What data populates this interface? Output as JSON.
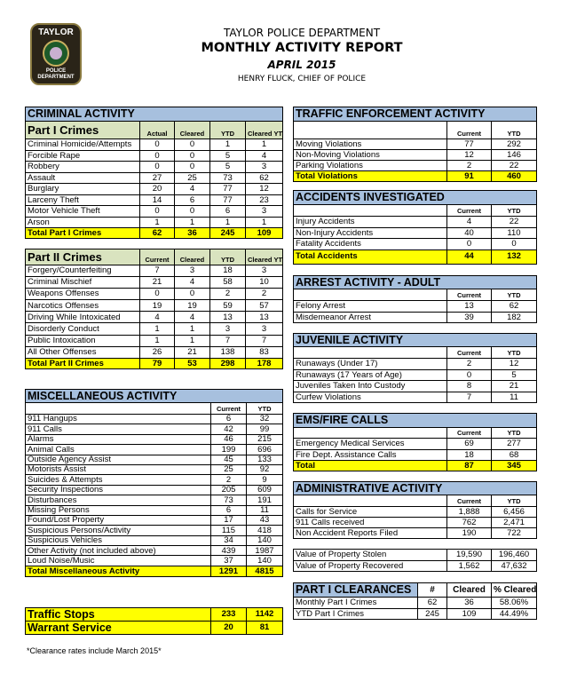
{
  "header": {
    "department": "TAYLOR POLICE DEPARTMENT",
    "report": "MONTHLY ACTIVITY REPORT",
    "period": "APRIL 2015",
    "chief": "HENRY FLUCK, CHIEF OF POLICE"
  },
  "logo": {
    "top": "TAYLOR",
    "ring": "CITY OF TAYLOR",
    "bottom1": "POLICE",
    "bottom2": "DEPARTMENT"
  },
  "criminal": {
    "title": "CRIMINAL ACTIVITY",
    "heading": "Part I Crimes",
    "columns": [
      "Actual",
      "Cleared",
      "YTD",
      "Cleared YTD"
    ],
    "rows": [
      [
        "Criminal Homicide/Attempts",
        "0",
        "0",
        "1",
        "1"
      ],
      [
        "Forcible Rape",
        "0",
        "0",
        "5",
        "4"
      ],
      [
        "Robbery",
        "0",
        "0",
        "5",
        "3"
      ],
      [
        "Assault",
        "27",
        "25",
        "73",
        "62"
      ],
      [
        "Burglary",
        "20",
        "4",
        "77",
        "12"
      ],
      [
        "Larceny Theft",
        "14",
        "6",
        "77",
        "23"
      ],
      [
        "Motor Vehicle Theft",
        "0",
        "0",
        "6",
        "3"
      ],
      [
        "Arson",
        "1",
        "1",
        "1",
        "1"
      ]
    ],
    "total": [
      "Total Part I Crimes",
      "62",
      "36",
      "245",
      "109"
    ]
  },
  "part2": {
    "heading": "Part II Crimes",
    "columns": [
      "Current",
      "Cleared",
      "YTD",
      "Cleared YTD"
    ],
    "rows": [
      [
        "Forgery/Counterfeiting",
        "7",
        "3",
        "18",
        "3"
      ],
      [
        "Criminal Mischief",
        "21",
        "4",
        "58",
        "10"
      ],
      [
        "Weapons Offenses",
        "0",
        "0",
        "2",
        "2"
      ],
      [
        "Narcotics Offenses",
        "19",
        "19",
        "59",
        "57"
      ],
      [
        "Driving While Intoxicated",
        "4",
        "4",
        "13",
        "13"
      ],
      [
        "Disorderly Conduct",
        "1",
        "1",
        "3",
        "3"
      ],
      [
        "Public Intoxication",
        "1",
        "1",
        "7",
        "7"
      ],
      [
        "All Other Offenses",
        "26",
        "21",
        "138",
        "83"
      ]
    ],
    "total": [
      "Total Part II Crimes",
      "79",
      "53",
      "298",
      "178"
    ]
  },
  "misc": {
    "title": "MISCELLANEOUS ACTIVITY",
    "heading": "",
    "columns": [
      "Current",
      "YTD"
    ],
    "rows": [
      [
        "911 Hangups",
        "6",
        "32"
      ],
      [
        "911 Calls",
        "42",
        "99"
      ],
      [
        "Alarms",
        "46",
        "215"
      ],
      [
        "Animal Calls",
        "199",
        "696"
      ],
      [
        "Outside Agency Assist",
        "45",
        "133"
      ],
      [
        "Motorists Assist",
        "25",
        "92"
      ],
      [
        "Suicides & Attempts",
        "2",
        "9"
      ],
      [
        "Security Inspections",
        "205",
        "609"
      ],
      [
        "Disturbances",
        "73",
        "191"
      ],
      [
        "Missing Persons",
        "6",
        "11"
      ],
      [
        "Found/Lost Property",
        "17",
        "43"
      ],
      [
        "Suspicious Persons/Activity",
        "115",
        "418"
      ],
      [
        "Suspicious Vehicles",
        "34",
        "140"
      ],
      [
        "Other Activity (not included above)",
        "439",
        "1987"
      ],
      [
        "Loud Noise/Music",
        "37",
        "140"
      ]
    ],
    "total": [
      "Total Miscellaneous Activity",
      "1291",
      "4815"
    ]
  },
  "stops": {
    "rows": [
      [
        "Traffic Stops",
        "233",
        "1142"
      ],
      [
        "Warrant Service",
        "20",
        "81"
      ]
    ]
  },
  "traffic": {
    "title": "TRAFFIC ENFORCEMENT ACTIVITY",
    "heading": "",
    "columns": [
      "Current",
      "YTD"
    ],
    "rows": [
      [
        "Moving Violations",
        "77",
        "292"
      ],
      [
        "Non-Moving Violations",
        "12",
        "146"
      ],
      [
        "Parking Violations",
        "2",
        "22"
      ]
    ],
    "total": [
      "Total Violations",
      "91",
      "460"
    ]
  },
  "accidents": {
    "title": "ACCIDENTS INVESTIGATED",
    "heading": "",
    "columns": [
      "Current",
      "YTD"
    ],
    "rows": [
      [
        "Injury Accidents",
        "4",
        "22"
      ],
      [
        "Non-Injury Accidents",
        "40",
        "110"
      ],
      [
        "Fatality Accidents",
        "0",
        "0"
      ]
    ],
    "total": [
      "Total Accidents",
      "44",
      "132"
    ]
  },
  "arrest": {
    "title": "ARREST ACTIVITY - ADULT",
    "heading": "",
    "columns": [
      "Current",
      "YTD"
    ],
    "rows": [
      [
        "Felony Arrest",
        "13",
        "62"
      ],
      [
        "Misdemeanor Arrest",
        "39",
        "182"
      ]
    ]
  },
  "juvenile": {
    "title": "JUVENILE ACTIVITY",
    "heading": "",
    "columns": [
      "Current",
      "YTD"
    ],
    "rows": [
      [
        "Runaways (Under 17)",
        "2",
        "12"
      ],
      [
        "Runaways (17 Years of Age)",
        "0",
        "5"
      ],
      [
        "Juveniles Taken Into Custody",
        "8",
        "21"
      ],
      [
        "Curfew Violations",
        "7",
        "11"
      ]
    ]
  },
  "ems": {
    "title": "EMS/FIRE CALLS",
    "heading": "",
    "columns": [
      "Current",
      "YTD"
    ],
    "rows": [
      [
        "Emergency Medical Services",
        "69",
        "277"
      ],
      [
        "Fire Dept. Assistance Calls",
        "18",
        "68"
      ]
    ],
    "total": [
      "Total",
      "87",
      "345"
    ]
  },
  "admin": {
    "title": "ADMINISTRATIVE ACTIVITY",
    "heading": "",
    "columns": [
      "Current",
      "YTD"
    ],
    "rows": [
      [
        "Calls for Service",
        "1,888",
        "6,456"
      ],
      [
        "911 Calls received",
        "762",
        "2,471"
      ],
      [
        "Non Accident Reports Filed",
        "190",
        "722"
      ]
    ]
  },
  "property": {
    "rows": [
      [
        "Value of Property Stolen",
        "19,590",
        "196,460"
      ],
      [
        "Value of Property Recovered",
        "1,562",
        "47,632"
      ]
    ]
  },
  "clearances": {
    "heading": "PART I CLEARANCES",
    "columns": [
      "#",
      "Cleared",
      "% Cleared"
    ],
    "rows": [
      [
        "Monthly Part I Crimes",
        "62",
        "36",
        "58.06%"
      ],
      [
        "YTD Part I Crimes",
        "245",
        "109",
        "44.49%"
      ]
    ]
  },
  "footnote": "*Clearance rates include March 2015*",
  "colors": {
    "section_header": "#a7c0de",
    "total_highlight": "#ffff00",
    "part_header": "#d9e3bf"
  }
}
